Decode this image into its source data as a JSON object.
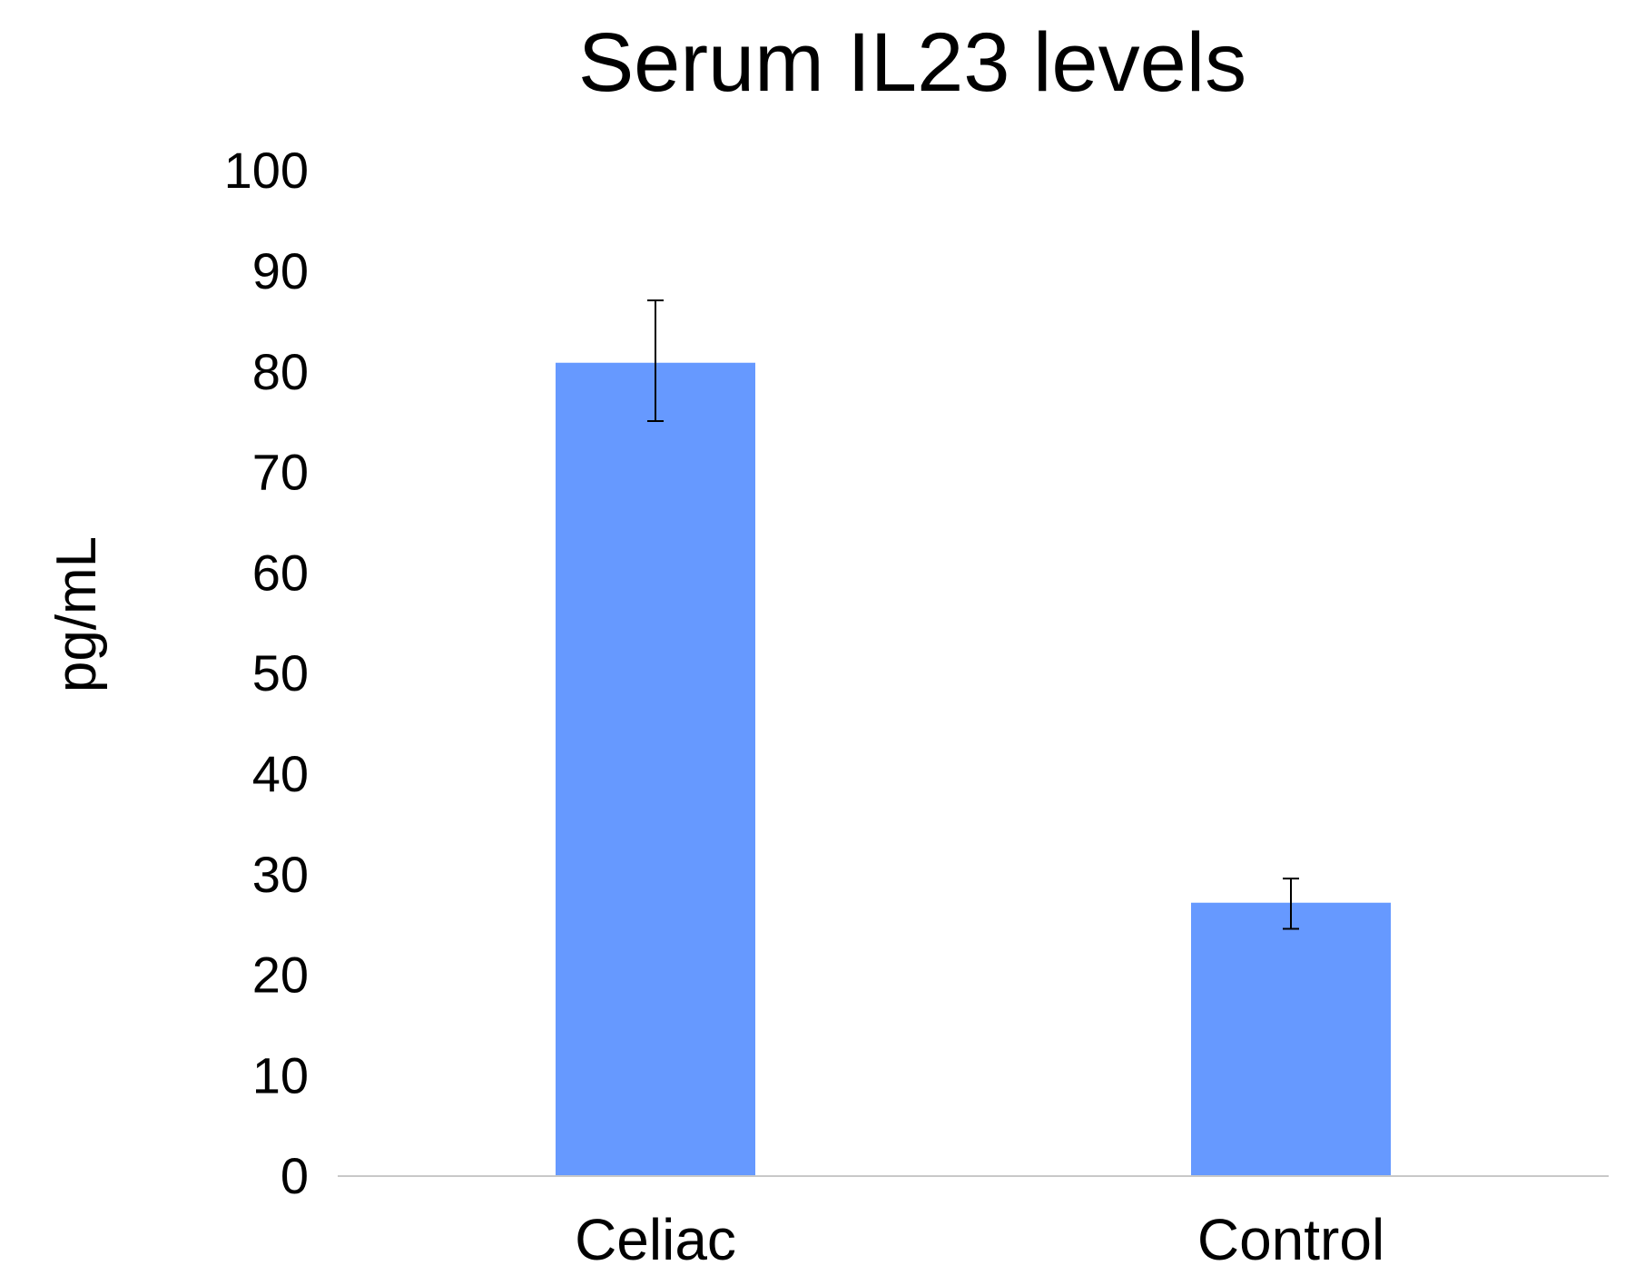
{
  "chart_data": {
    "type": "bar",
    "title": "Serum IL23 levels",
    "xlabel": "",
    "ylabel": "pg/mL",
    "categories": [
      "Celiac",
      "Control"
    ],
    "values": [
      80.8,
      27.1
    ],
    "error_bars": [
      {
        "upper": 87.0,
        "lower": 75.0
      },
      {
        "upper": 29.5,
        "lower": 24.5
      }
    ],
    "ylim": [
      0,
      100
    ],
    "yticks": [
      0,
      10,
      20,
      30,
      40,
      50,
      60,
      70,
      80,
      90,
      100
    ],
    "grid": false,
    "legend": "none",
    "colors": {
      "bar": "#6699ff",
      "axis": "#c8c8c8",
      "error_bar": "#000000"
    }
  }
}
